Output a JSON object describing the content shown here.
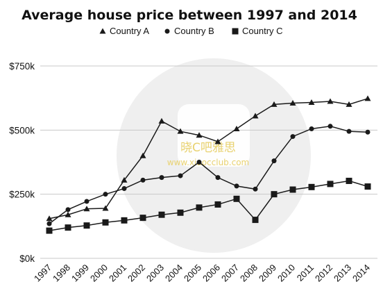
{
  "chart_data": {
    "type": "line",
    "title": "Average house price between 1997 and 2014",
    "xlabel": "",
    "ylabel": "",
    "x": [
      "1997",
      "1998",
      "1999",
      "2000",
      "2001",
      "2002",
      "2003",
      "2004",
      "2005",
      "2006",
      "2007",
      "2008",
      "2009",
      "2010",
      "2011",
      "2012",
      "2013",
      "2014"
    ],
    "ylim": [
      0,
      750000
    ],
    "yticks": [
      0,
      250000,
      500000,
      750000
    ],
    "ytick_labels": [
      "$0k",
      "$250k",
      "$500k",
      "$750k"
    ],
    "grid": true,
    "legend_position": "top-center",
    "series": [
      {
        "name": "Country A",
        "marker": "triangle",
        "values": [
          155000,
          170000,
          193000,
          195000,
          305000,
          400000,
          535000,
          495000,
          480000,
          455000,
          505000,
          555000,
          600000,
          605000,
          608000,
          612000,
          600000,
          623000
        ]
      },
      {
        "name": "Country B",
        "marker": "circle",
        "values": [
          135000,
          190000,
          222000,
          250000,
          272000,
          305000,
          315000,
          322000,
          375000,
          315000,
          282000,
          270000,
          380000,
          475000,
          505000,
          515000,
          495000,
          492000
        ]
      },
      {
        "name": "Country C",
        "marker": "square",
        "values": [
          108000,
          120000,
          128000,
          140000,
          148000,
          158000,
          170000,
          178000,
          198000,
          210000,
          232000,
          150000,
          250000,
          268000,
          278000,
          290000,
          302000,
          280000
        ]
      }
    ],
    "colors": {
      "line": "#1a1a1a",
      "grid": "#c8c8c8"
    }
  },
  "watermark": {
    "title": "晓C吧雅思",
    "url": "www.xiaocclub.com",
    "color": "#e9d270"
  }
}
